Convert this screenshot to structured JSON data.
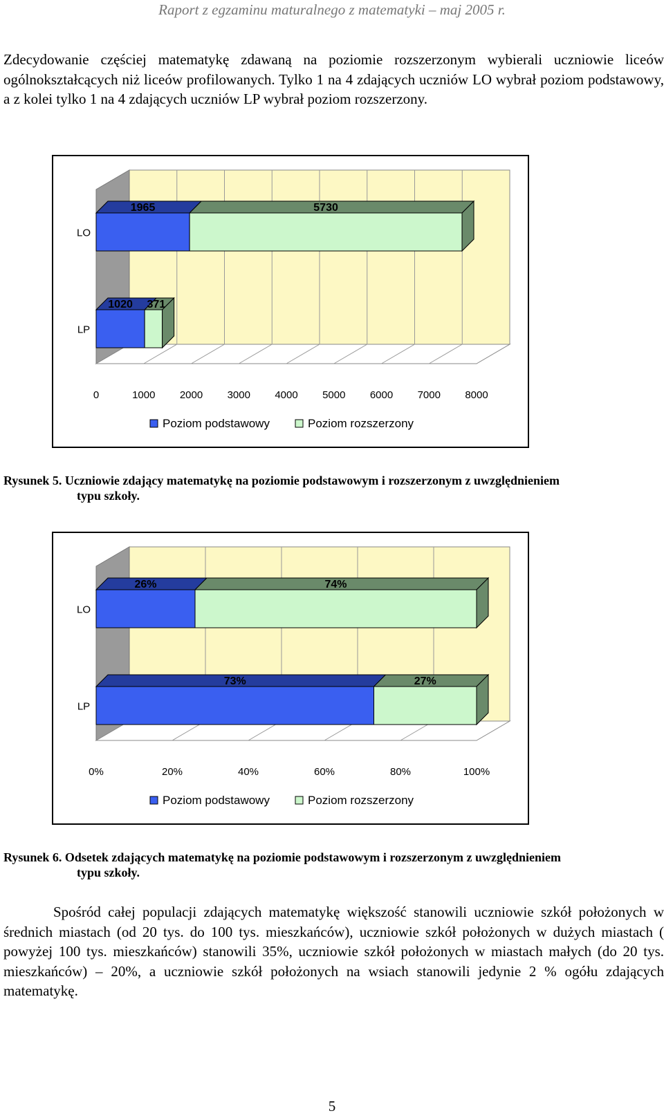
{
  "header": {
    "title": "Raport z egzaminu maturalnego z matematyki – maj 2005 r."
  },
  "paragraph1": "Zdecydowanie częściej matematykę zdawaną na poziomie rozszerzonym wybierali uczniowie liceów ogólnokształcących niż liceów profilowanych. Tylko 1 na 4 zdających uczniów LO wybrał poziom podstawowy, a z kolei tylko 1 na 4 zdających uczniów LP wybrał poziom rozszerzony.",
  "figure5": {
    "label": "Rysunek 5.",
    "caption_line1": "Uczniowie zdający matematykę na poziomie podstawowym i rozszerzonym z uwzględnieniem",
    "caption_line2": "typu szkoły."
  },
  "figure6": {
    "label": "Rysunek 6.",
    "caption_line1": "Odsetek zdających matematykę na poziomie podstawowym i rozszerzonym z uwzględnieniem",
    "caption_line2": "typu szkoły."
  },
  "paragraph2": "Spośród całej populacji zdających matematykę większość stanowili uczniowie szkół położonych w średnich miastach (od 20 tys. do 100 tys. mieszkańców), uczniowie szkół położonych w dużych miastach ( powyżej 100 tys. mieszkańców) stanowili 35%, uczniowie szkół położonych w miastach małych (do 20 tys. mieszkańców) – 20%, a uczniowie szkół położonych na wsiach stanowili jedynie 2 % ogółu zdających matematykę.",
  "page_number": "5",
  "colors": {
    "basic": "#3a5ff0",
    "basic_dark": "#243c9e",
    "extended": "#ccf7cc",
    "extended_dark": "#6a8a6a",
    "plot_bg": "#fdf8c4",
    "plot_side": "#9a9a9a"
  },
  "chart_data": [
    {
      "type": "bar",
      "orientation": "horizontal",
      "stacked": true,
      "categories": [
        "LO",
        "LP"
      ],
      "series": [
        {
          "name": "Poziom podstawowy",
          "values": [
            1965,
            1020
          ]
        },
        {
          "name": "Poziom rozszerzony",
          "values": [
            5730,
            371
          ]
        }
      ],
      "data_labels": [
        [
          "1965",
          "1020"
        ],
        [
          "5730",
          "371"
        ]
      ],
      "xlim": [
        0,
        8000
      ],
      "xticks": [
        "0",
        "1000",
        "2000",
        "3000",
        "4000",
        "5000",
        "6000",
        "7000",
        "8000"
      ],
      "grid": true,
      "legend": "bottom"
    },
    {
      "type": "bar",
      "orientation": "horizontal",
      "stacked": true,
      "percent": true,
      "categories": [
        "LO",
        "LP"
      ],
      "series": [
        {
          "name": "Poziom podstawowy",
          "values": [
            26,
            73
          ]
        },
        {
          "name": "Poziom rozszerzony",
          "values": [
            74,
            27
          ]
        }
      ],
      "data_labels": [
        [
          "26%",
          "73%"
        ],
        [
          "74%",
          "27%"
        ]
      ],
      "xlim": [
        0,
        100
      ],
      "xticks": [
        "0%",
        "20%",
        "40%",
        "60%",
        "80%",
        "100%"
      ],
      "grid": true,
      "legend": "bottom"
    }
  ]
}
